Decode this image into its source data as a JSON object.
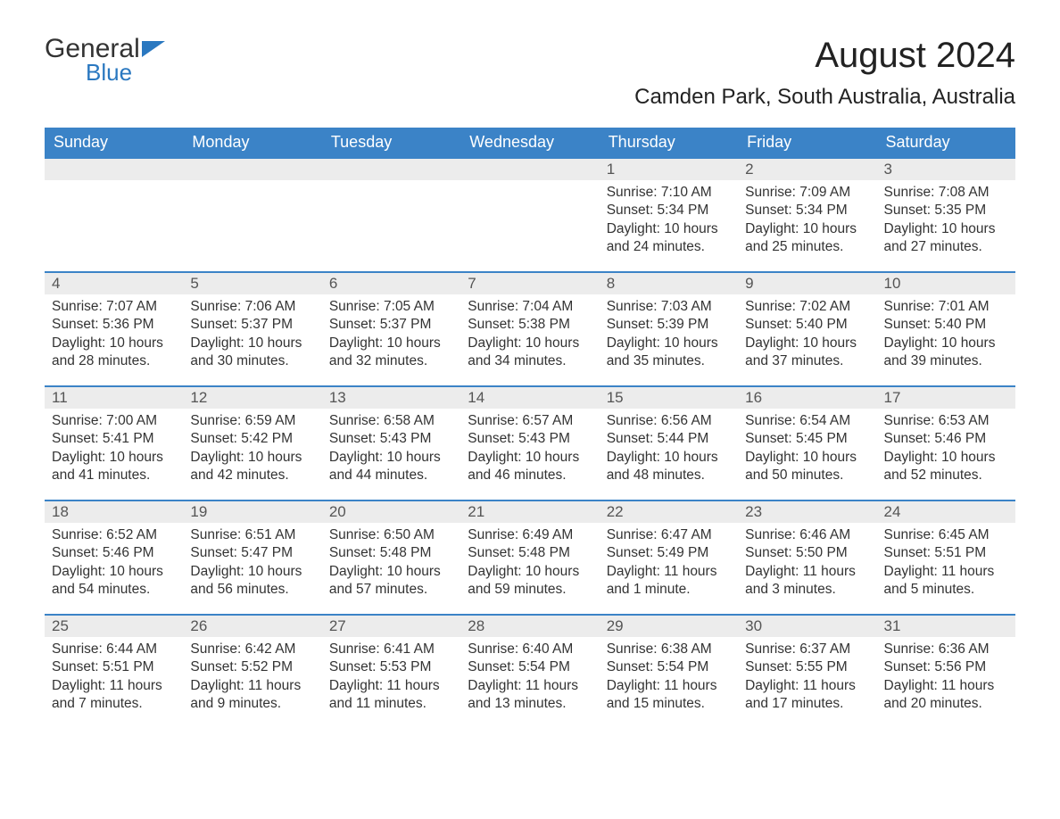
{
  "logo": {
    "word1": "General",
    "word2": "Blue"
  },
  "title": "August 2024",
  "location": "Camden Park, South Australia, Australia",
  "colors": {
    "header_bg": "#3b83c7",
    "header_text": "#ffffff",
    "daynum_bg": "#ececec",
    "body_text": "#333333",
    "rule": "#3b83c7",
    "logo_accent": "#2a78c0"
  },
  "weekdays": [
    "Sunday",
    "Monday",
    "Tuesday",
    "Wednesday",
    "Thursday",
    "Friday",
    "Saturday"
  ],
  "first_weekday_index": 4,
  "days": [
    {
      "n": 1,
      "sunrise": "7:10 AM",
      "sunset": "5:34 PM",
      "daylight": "10 hours and 24 minutes."
    },
    {
      "n": 2,
      "sunrise": "7:09 AM",
      "sunset": "5:34 PM",
      "daylight": "10 hours and 25 minutes."
    },
    {
      "n": 3,
      "sunrise": "7:08 AM",
      "sunset": "5:35 PM",
      "daylight": "10 hours and 27 minutes."
    },
    {
      "n": 4,
      "sunrise": "7:07 AM",
      "sunset": "5:36 PM",
      "daylight": "10 hours and 28 minutes."
    },
    {
      "n": 5,
      "sunrise": "7:06 AM",
      "sunset": "5:37 PM",
      "daylight": "10 hours and 30 minutes."
    },
    {
      "n": 6,
      "sunrise": "7:05 AM",
      "sunset": "5:37 PM",
      "daylight": "10 hours and 32 minutes."
    },
    {
      "n": 7,
      "sunrise": "7:04 AM",
      "sunset": "5:38 PM",
      "daylight": "10 hours and 34 minutes."
    },
    {
      "n": 8,
      "sunrise": "7:03 AM",
      "sunset": "5:39 PM",
      "daylight": "10 hours and 35 minutes."
    },
    {
      "n": 9,
      "sunrise": "7:02 AM",
      "sunset": "5:40 PM",
      "daylight": "10 hours and 37 minutes."
    },
    {
      "n": 10,
      "sunrise": "7:01 AM",
      "sunset": "5:40 PM",
      "daylight": "10 hours and 39 minutes."
    },
    {
      "n": 11,
      "sunrise": "7:00 AM",
      "sunset": "5:41 PM",
      "daylight": "10 hours and 41 minutes."
    },
    {
      "n": 12,
      "sunrise": "6:59 AM",
      "sunset": "5:42 PM",
      "daylight": "10 hours and 42 minutes."
    },
    {
      "n": 13,
      "sunrise": "6:58 AM",
      "sunset": "5:43 PM",
      "daylight": "10 hours and 44 minutes."
    },
    {
      "n": 14,
      "sunrise": "6:57 AM",
      "sunset": "5:43 PM",
      "daylight": "10 hours and 46 minutes."
    },
    {
      "n": 15,
      "sunrise": "6:56 AM",
      "sunset": "5:44 PM",
      "daylight": "10 hours and 48 minutes."
    },
    {
      "n": 16,
      "sunrise": "6:54 AM",
      "sunset": "5:45 PM",
      "daylight": "10 hours and 50 minutes."
    },
    {
      "n": 17,
      "sunrise": "6:53 AM",
      "sunset": "5:46 PM",
      "daylight": "10 hours and 52 minutes."
    },
    {
      "n": 18,
      "sunrise": "6:52 AM",
      "sunset": "5:46 PM",
      "daylight": "10 hours and 54 minutes."
    },
    {
      "n": 19,
      "sunrise": "6:51 AM",
      "sunset": "5:47 PM",
      "daylight": "10 hours and 56 minutes."
    },
    {
      "n": 20,
      "sunrise": "6:50 AM",
      "sunset": "5:48 PM",
      "daylight": "10 hours and 57 minutes."
    },
    {
      "n": 21,
      "sunrise": "6:49 AM",
      "sunset": "5:48 PM",
      "daylight": "10 hours and 59 minutes."
    },
    {
      "n": 22,
      "sunrise": "6:47 AM",
      "sunset": "5:49 PM",
      "daylight": "11 hours and 1 minute."
    },
    {
      "n": 23,
      "sunrise": "6:46 AM",
      "sunset": "5:50 PM",
      "daylight": "11 hours and 3 minutes."
    },
    {
      "n": 24,
      "sunrise": "6:45 AM",
      "sunset": "5:51 PM",
      "daylight": "11 hours and 5 minutes."
    },
    {
      "n": 25,
      "sunrise": "6:44 AM",
      "sunset": "5:51 PM",
      "daylight": "11 hours and 7 minutes."
    },
    {
      "n": 26,
      "sunrise": "6:42 AM",
      "sunset": "5:52 PM",
      "daylight": "11 hours and 9 minutes."
    },
    {
      "n": 27,
      "sunrise": "6:41 AM",
      "sunset": "5:53 PM",
      "daylight": "11 hours and 11 minutes."
    },
    {
      "n": 28,
      "sunrise": "6:40 AM",
      "sunset": "5:54 PM",
      "daylight": "11 hours and 13 minutes."
    },
    {
      "n": 29,
      "sunrise": "6:38 AM",
      "sunset": "5:54 PM",
      "daylight": "11 hours and 15 minutes."
    },
    {
      "n": 30,
      "sunrise": "6:37 AM",
      "sunset": "5:55 PM",
      "daylight": "11 hours and 17 minutes."
    },
    {
      "n": 31,
      "sunrise": "6:36 AM",
      "sunset": "5:56 PM",
      "daylight": "11 hours and 20 minutes."
    }
  ],
  "labels": {
    "sunrise": "Sunrise:",
    "sunset": "Sunset:",
    "daylight": "Daylight:"
  }
}
